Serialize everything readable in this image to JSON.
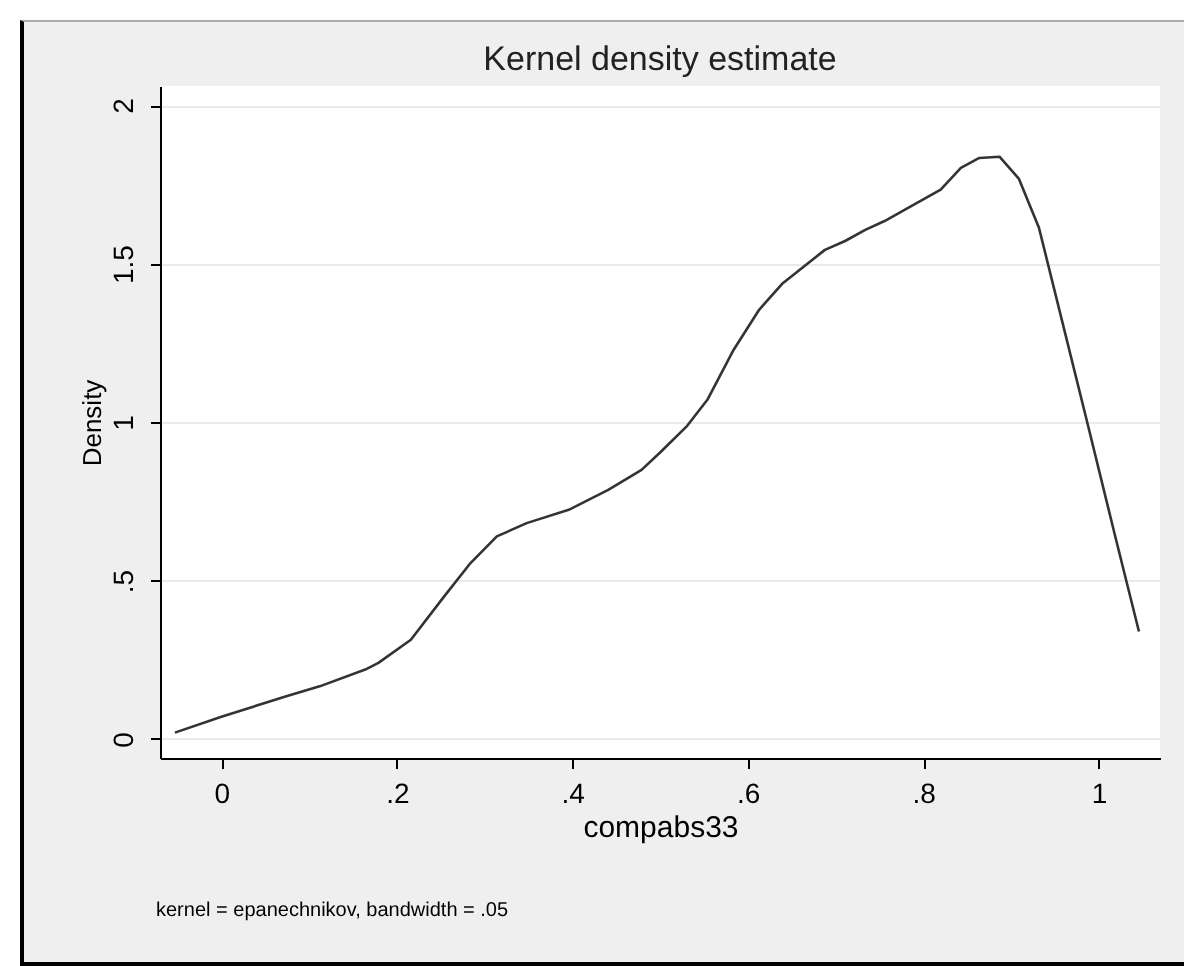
{
  "chart_data": {
    "type": "line",
    "title": "Kernel density estimate",
    "xlabel": "compabs33",
    "ylabel": "Density",
    "annotations": [
      "kernel = epanechnikov, bandwidth = .05"
    ],
    "x": [
      -0.053,
      0,
      0.074,
      0.112,
      0.164,
      0.179,
      0.216,
      0.254,
      0.284,
      0.314,
      0.348,
      0.396,
      0.441,
      0.479,
      0.501,
      0.531,
      0.554,
      0.584,
      0.613,
      0.64,
      0.688,
      0.711,
      0.734,
      0.756,
      0.793,
      0.82,
      0.843,
      0.864,
      0.887,
      0.909,
      0.932,
      0.958,
      0.988,
      1.018,
      1.046
    ],
    "series": [
      {
        "color": "#333333",
        "values": [
          0.02,
          0.07,
          0.135,
          0.166,
          0.219,
          0.24,
          0.313,
          0.45,
          0.555,
          0.639,
          0.681,
          0.723,
          0.786,
          0.849,
          0.906,
          0.988,
          1.07,
          1.228,
          1.354,
          1.438,
          1.543,
          1.571,
          1.606,
          1.634,
          1.691,
          1.733,
          1.802,
          1.833,
          1.837,
          1.768,
          1.613,
          1.323,
          0.988,
          0.65,
          0.339
        ]
      }
    ],
    "xlim": [
      -0.07,
      1.07
    ],
    "ylim": [
      -0.06,
      2.06
    ],
    "xticks": [
      0,
      {
        "value": 0.2,
        "label": ".2"
      },
      {
        "value": 0.4,
        "label": ".4"
      },
      {
        "value": 0.6,
        "label": ".6"
      },
      {
        "value": 0.8,
        "label": ".8"
      },
      1
    ],
    "yticks": [
      0,
      {
        "value": 0.5,
        "label": ".5"
      },
      1,
      1.5,
      2
    ],
    "grid": "y",
    "marker": "none",
    "line_style": "solid"
  }
}
